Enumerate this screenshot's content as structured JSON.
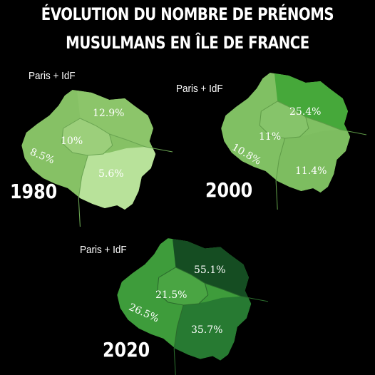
{
  "title": {
    "line1": "ÉVOLUTION DU NOMBRE DE PRÉNOMS",
    "line2": "MUSULMANS EN ÎLE DE FRANCE"
  },
  "maps": [
    {
      "year": "1980",
      "scope_label": "Paris + IdF",
      "regions": {
        "north_east": "12.9%",
        "center": "10%",
        "west": "8.5%",
        "south_east": "5.6%"
      },
      "colors": {
        "north_east": "#8cc56a",
        "center": "#9ccf7b",
        "west": "#86c165",
        "south_east": "#b8e29a"
      }
    },
    {
      "year": "2000",
      "scope_label": "Paris + IdF",
      "regions": {
        "north_east": "25.4%",
        "center": "11%",
        "west": "10.8%",
        "south_east": "11.4%"
      },
      "colors": {
        "north_east": "#46a83a",
        "center": "#86c46a",
        "west": "#80c063",
        "south_east": "#7dbd60"
      }
    },
    {
      "year": "2020",
      "scope_label": "Paris + IdF",
      "regions": {
        "north_east": "55.1%",
        "center": "21.5%",
        "west": "26.5%",
        "south_east": "35.7%"
      },
      "colors": {
        "north_east": "#154d22",
        "center": "#4aa543",
        "west": "#3e9c3b",
        "south_east": "#277a32"
      }
    }
  ]
}
